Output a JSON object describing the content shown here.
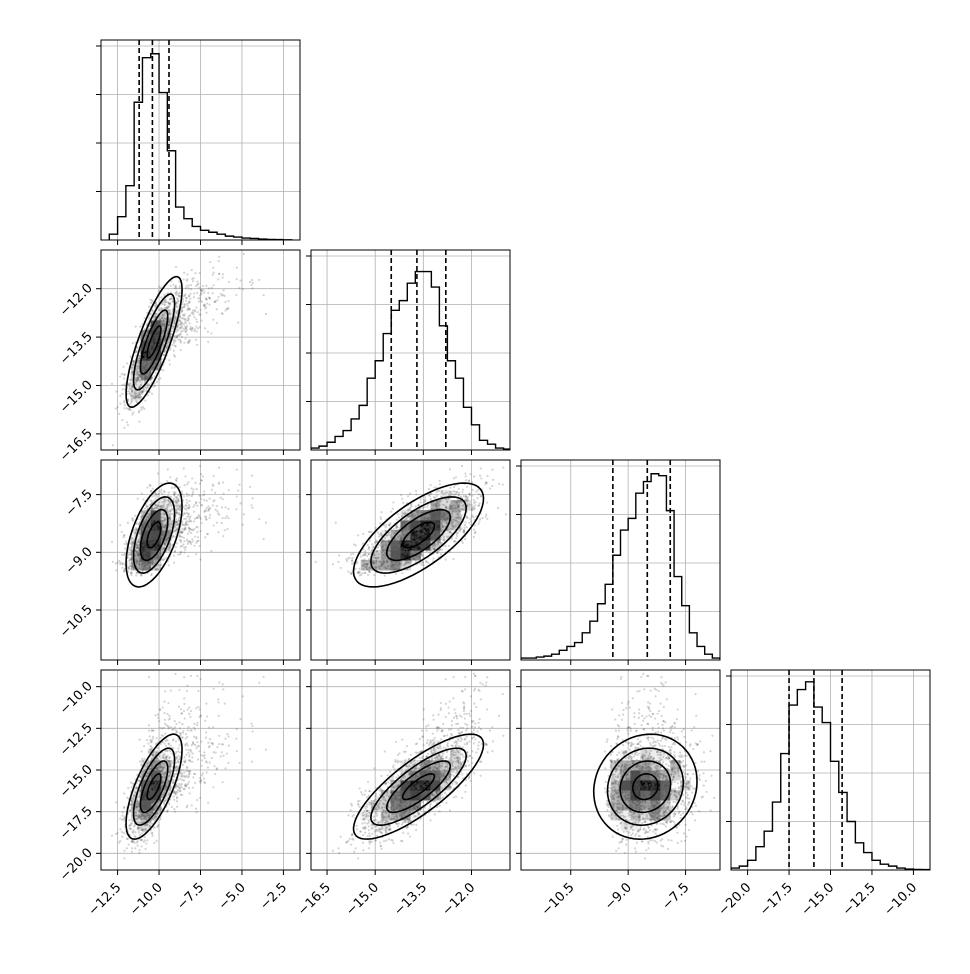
{
  "chart_data": {
    "type": "corner",
    "grid": true,
    "colors": {
      "hist": "#000000",
      "scatter": "#555555",
      "grid": "#b0b0b0",
      "density_dark": "#000000"
    },
    "params": [
      {
        "range": [
          -13.5,
          -1.5
        ],
        "ticks": [
          -12.5,
          -10.0,
          -7.5,
          -5.0,
          -2.5
        ],
        "tick_labels": [
          "−12.5",
          "−10.0",
          "−7.5",
          "−5.0",
          "−2.5"
        ],
        "quantiles": [
          -11.2,
          -10.4,
          -9.4
        ],
        "hist_edges": [
          -13.0,
          -12.5,
          -12.0,
          -11.5,
          -11.0,
          -10.5,
          -10.0,
          -9.5,
          -9.0,
          -8.5,
          -8.0,
          -7.5,
          -7.0,
          -6.5,
          -6.0,
          -5.5,
          -5.0,
          -4.5,
          -4.0,
          -3.5,
          -3.0,
          -2.5,
          -2.0
        ],
        "hist_counts": [
          0.03,
          0.12,
          0.28,
          0.71,
          0.94,
          0.96,
          0.76,
          0.46,
          0.17,
          0.11,
          0.07,
          0.05,
          0.04,
          0.03,
          0.02,
          0.015,
          0.01,
          0.008,
          0.005,
          0.003,
          0.002,
          0.001
        ],
        "hist_ymax": 1.0,
        "hist_ticks": [
          0.25,
          0.5,
          0.75,
          1.0
        ],
        "dist": {
          "mean": -10.3,
          "sd": 0.75,
          "skew": 2.2
        }
      },
      {
        "range": [
          -17.0,
          -10.8
        ],
        "ticks": [
          -16.5,
          -15.0,
          -13.5,
          -12.0
        ],
        "tick_labels": [
          "−16.5",
          "−15.0",
          "−13.5",
          "−12.0"
        ],
        "quantiles": [
          -14.5,
          -13.7,
          -12.8
        ],
        "hist_edges": [
          -17.0,
          -16.75,
          -16.5,
          -16.25,
          -16.0,
          -15.75,
          -15.5,
          -15.25,
          -15.0,
          -14.75,
          -14.5,
          -14.25,
          -14.0,
          -13.75,
          -13.5,
          -13.25,
          -13.0,
          -12.75,
          -12.5,
          -12.25,
          -12.0,
          -11.75,
          -11.5,
          -11.25,
          -11.0,
          -10.8
        ],
        "hist_counts": [
          0.01,
          0.02,
          0.04,
          0.07,
          0.1,
          0.16,
          0.23,
          0.37,
          0.46,
          0.6,
          0.72,
          0.77,
          0.86,
          0.92,
          0.92,
          0.84,
          0.64,
          0.46,
          0.37,
          0.22,
          0.13,
          0.05,
          0.03,
          0.01,
          0.005
        ],
        "hist_ymax": 1.0,
        "hist_ticks": [
          0.25,
          0.5,
          0.75,
          1.0
        ],
        "dist": {
          "mean": -13.65,
          "sd": 0.9,
          "skew": 0.0
        }
      },
      {
        "range": [
          -11.8,
          -6.6
        ],
        "ticks": [
          -10.5,
          -9.0,
          -7.5
        ],
        "tick_labels": [
          "−10.5",
          "−9.0",
          "−7.5"
        ],
        "quantiles": [
          -9.4,
          -8.5,
          -7.9
        ],
        "hist_edges": [
          -11.8,
          -11.6,
          -11.4,
          -11.2,
          -11.0,
          -10.8,
          -10.6,
          -10.4,
          -10.2,
          -10.0,
          -9.8,
          -9.6,
          -9.4,
          -9.2,
          -9.0,
          -8.8,
          -8.6,
          -8.4,
          -8.2,
          -8.0,
          -7.8,
          -7.6,
          -7.4,
          -7.2,
          -7.0,
          -6.8,
          -6.6
        ],
        "hist_counts": [
          0.01,
          0.01,
          0.015,
          0.02,
          0.03,
          0.05,
          0.07,
          0.09,
          0.14,
          0.2,
          0.29,
          0.39,
          0.54,
          0.67,
          0.73,
          0.86,
          0.92,
          0.96,
          0.95,
          0.77,
          0.43,
          0.28,
          0.14,
          0.07,
          0.03,
          0.01
        ],
        "hist_ymax": 1.0,
        "hist_ticks": [
          0.25,
          0.5,
          0.75,
          1.0
        ],
        "dist": {
          "mean": -8.55,
          "sd": 0.6,
          "skew": -0.4
        }
      },
      {
        "range": [
          -21.0,
          -9.0
        ],
        "ticks": [
          -20.0,
          -17.5,
          -15.0,
          -12.5,
          -10.0
        ],
        "tick_labels": [
          "−20.0",
          "−17.5",
          "−15.0",
          "−12.5",
          "−10.0"
        ],
        "quantiles": [
          -17.5,
          -16.0,
          -14.3
        ],
        "hist_edges": [
          -21.0,
          -20.5,
          -20.0,
          -19.5,
          -19.0,
          -18.5,
          -18.0,
          -17.5,
          -17.0,
          -16.5,
          -16.0,
          -15.5,
          -15.0,
          -14.5,
          -14.0,
          -13.5,
          -13.0,
          -12.5,
          -12.0,
          -11.5,
          -11.0,
          -10.5,
          -10.0,
          -9.5,
          -9.0
        ],
        "hist_counts": [
          0.01,
          0.02,
          0.05,
          0.12,
          0.2,
          0.35,
          0.6,
          0.85,
          0.93,
          0.97,
          0.84,
          0.76,
          0.56,
          0.4,
          0.25,
          0.14,
          0.09,
          0.05,
          0.03,
          0.02,
          0.01,
          0.005,
          0.003,
          0.002
        ],
        "hist_ymax": 1.0,
        "hist_ticks": [
          0.25,
          0.5,
          0.75,
          1.0
        ],
        "dist": {
          "mean": -16.0,
          "sd": 1.4,
          "skew": 0.8
        }
      }
    ],
    "correlations": {
      "1-0": 0.8,
      "2-0": 0.55,
      "2-1": 0.7,
      "3-0": 0.7,
      "3-1": 0.8,
      "3-2": 0.1
    }
  }
}
